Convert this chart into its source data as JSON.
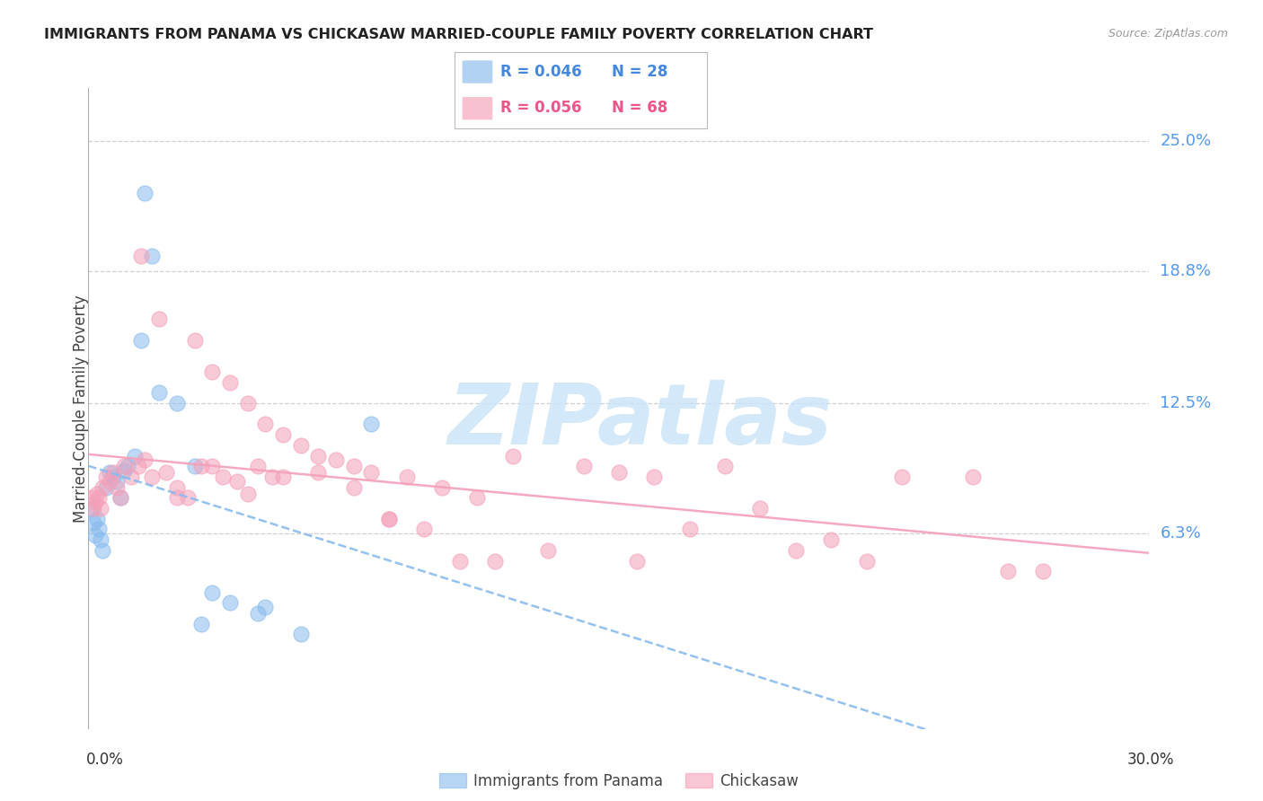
{
  "title": "IMMIGRANTS FROM PANAMA VS CHICKASAW MARRIED-COUPLE FAMILY POVERTY CORRELATION CHART",
  "source": "Source: ZipAtlas.com",
  "ylabel": "Married-Couple Family Poverty",
  "ytick_values": [
    25.0,
    18.8,
    12.5,
    6.3
  ],
  "xmin": 0.0,
  "xmax": 30.0,
  "ymin": -3.0,
  "ymax": 27.5,
  "legend1_R": "0.046",
  "legend1_N": "28",
  "legend2_R": "0.056",
  "legend2_N": "68",
  "color_blue": "#88bbee",
  "color_pink": "#f4a0b8",
  "blue_scatter_x": [
    0.1,
    0.15,
    0.2,
    0.25,
    0.3,
    0.35,
    0.4,
    0.5,
    0.6,
    0.7,
    0.8,
    0.9,
    1.0,
    1.1,
    1.3,
    1.5,
    1.8,
    2.0,
    2.5,
    3.0,
    3.5,
    4.0,
    5.0,
    6.0,
    8.0,
    1.6,
    3.2,
    4.8
  ],
  "blue_scatter_y": [
    7.5,
    6.8,
    6.2,
    7.0,
    6.5,
    6.0,
    5.5,
    8.5,
    9.2,
    9.0,
    8.8,
    8.0,
    9.3,
    9.5,
    10.0,
    15.5,
    19.5,
    13.0,
    12.5,
    9.5,
    3.5,
    3.0,
    2.8,
    1.5,
    11.5,
    22.5,
    2.0,
    2.5
  ],
  "pink_scatter_x": [
    0.1,
    0.15,
    0.2,
    0.25,
    0.3,
    0.35,
    0.4,
    0.5,
    0.6,
    0.7,
    0.8,
    0.9,
    1.0,
    1.2,
    1.4,
    1.6,
    1.8,
    2.0,
    2.2,
    2.5,
    2.8,
    3.0,
    3.2,
    3.5,
    3.8,
    4.0,
    4.2,
    4.5,
    4.8,
    5.0,
    5.2,
    5.5,
    6.0,
    6.5,
    7.0,
    7.5,
    8.0,
    8.5,
    9.0,
    9.5,
    10.0,
    10.5,
    11.0,
    11.5,
    12.0,
    13.0,
    14.0,
    15.0,
    15.5,
    16.0,
    17.0,
    18.0,
    19.0,
    20.0,
    21.0,
    22.0,
    23.0,
    25.0,
    26.0,
    27.0,
    1.5,
    2.5,
    3.5,
    4.5,
    5.5,
    6.5,
    7.5,
    8.5
  ],
  "pink_scatter_y": [
    8.0,
    7.5,
    7.8,
    8.2,
    8.0,
    7.5,
    8.5,
    9.0,
    8.8,
    9.2,
    8.5,
    8.0,
    9.5,
    9.0,
    9.5,
    9.8,
    9.0,
    16.5,
    9.2,
    8.5,
    8.0,
    15.5,
    9.5,
    14.0,
    9.0,
    13.5,
    8.8,
    12.5,
    9.5,
    11.5,
    9.0,
    11.0,
    10.5,
    10.0,
    9.8,
    9.5,
    9.2,
    7.0,
    9.0,
    6.5,
    8.5,
    5.0,
    8.0,
    5.0,
    10.0,
    5.5,
    9.5,
    9.2,
    5.0,
    9.0,
    6.5,
    9.5,
    7.5,
    5.5,
    6.0,
    5.0,
    9.0,
    9.0,
    4.5,
    4.5,
    19.5,
    8.0,
    9.5,
    8.2,
    9.0,
    9.2,
    8.5,
    7.0
  ],
  "watermark_text": "ZIPatlas",
  "watermark_color": "#cce4f7",
  "grid_color": "#d0d0d0",
  "bg_color": "#ffffff",
  "title_color": "#222222",
  "right_tick_color": "#5599ee",
  "ylabel_color": "#444444"
}
